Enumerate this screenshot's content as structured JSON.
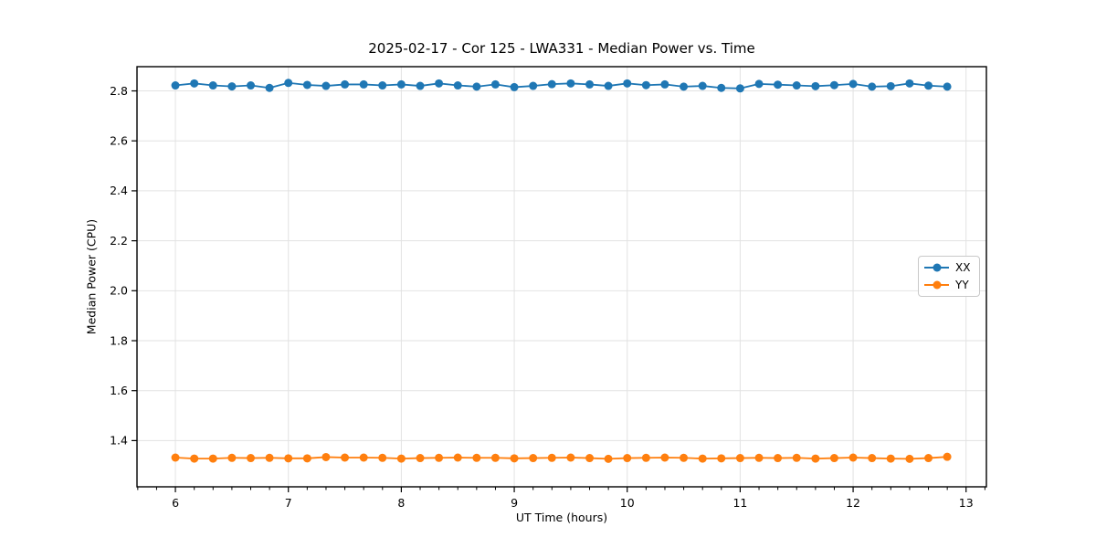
{
  "figure": {
    "title": "2025-02-17 - Cor 125 - LWA331 - Median Power vs. Time",
    "xlabel": "UT Time (hours)",
    "ylabel": "Median Power (CPU)"
  },
  "legend": {
    "items": [
      {
        "label": "XX",
        "color": "#1f77b4"
      },
      {
        "label": "YY",
        "color": "#ff7f0e"
      }
    ]
  },
  "colors": {
    "series_xx": "#1f77b4",
    "series_yy": "#ff7f0e",
    "grid": "#e2e2e2",
    "spine": "#000000",
    "background": "#ffffff"
  },
  "chart_data": {
    "type": "line",
    "title": "2025-02-17 - Cor 125 - LWA331 - Median Power vs. Time",
    "xlabel": "UT Time (hours)",
    "ylabel": "Median Power (CPU)",
    "grid": true,
    "legend_position": "center right",
    "xlim": [
      5.66,
      13.18
    ],
    "ylim": [
      1.215,
      2.897
    ],
    "xticks": [
      6,
      7,
      8,
      9,
      10,
      11,
      12,
      13
    ],
    "yticks": [
      1.4,
      1.6,
      1.8,
      2.0,
      2.2,
      2.4,
      2.6,
      2.8
    ],
    "x_minor_tick_step": 0.16667,
    "x": [
      6,
      6.167,
      6.333,
      6.5,
      6.667,
      6.833,
      7,
      7.167,
      7.333,
      7.5,
      7.667,
      7.833,
      8,
      8.167,
      8.333,
      8.5,
      8.667,
      8.833,
      9,
      9.167,
      9.333,
      9.5,
      9.667,
      9.833,
      10,
      10.167,
      10.333,
      10.5,
      10.667,
      10.833,
      11,
      11.167,
      11.333,
      11.5,
      11.667,
      11.833,
      12,
      12.167,
      12.333,
      12.5,
      12.667,
      12.833
    ],
    "series": [
      {
        "name": "XX",
        "color": "#1f77b4",
        "values": [
          2.822,
          2.83,
          2.822,
          2.818,
          2.822,
          2.812,
          2.832,
          2.824,
          2.82,
          2.826,
          2.826,
          2.822,
          2.826,
          2.82,
          2.83,
          2.822,
          2.817,
          2.826,
          2.815,
          2.82,
          2.827,
          2.83,
          2.826,
          2.82,
          2.83,
          2.823,
          2.826,
          2.817,
          2.82,
          2.812,
          2.81,
          2.828,
          2.825,
          2.822,
          2.819,
          2.823,
          2.828,
          2.817,
          2.819,
          2.83,
          2.821,
          2.817
        ]
      },
      {
        "name": "YY",
        "color": "#ff7f0e",
        "values": [
          1.332,
          1.328,
          1.328,
          1.331,
          1.33,
          1.331,
          1.329,
          1.329,
          1.334,
          1.332,
          1.332,
          1.331,
          1.328,
          1.33,
          1.331,
          1.332,
          1.331,
          1.331,
          1.329,
          1.33,
          1.331,
          1.332,
          1.33,
          1.327,
          1.33,
          1.331,
          1.332,
          1.331,
          1.328,
          1.329,
          1.33,
          1.331,
          1.33,
          1.331,
          1.328,
          1.33,
          1.332,
          1.33,
          1.328,
          1.327,
          1.33,
          1.335
        ]
      }
    ]
  }
}
